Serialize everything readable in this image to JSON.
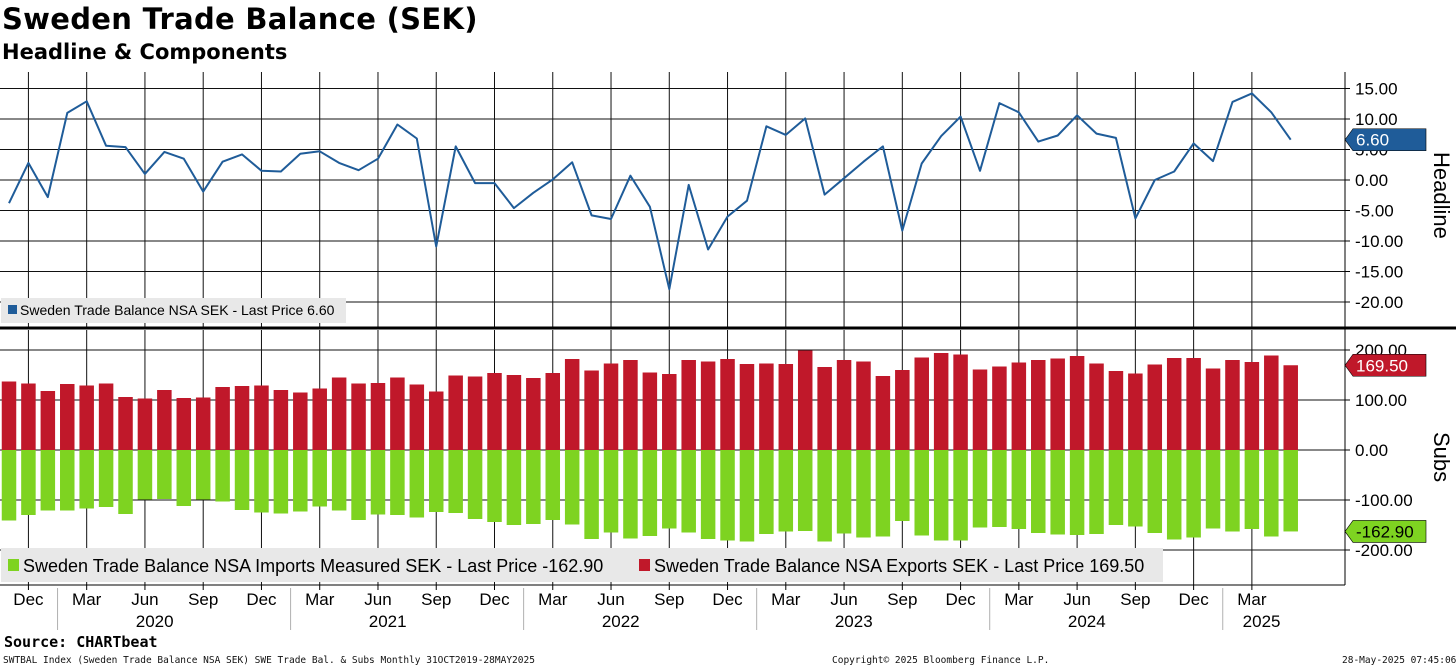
{
  "header": {
    "title": "Sweden Trade Balance (SEK)",
    "subtitle": "Headline & Components"
  },
  "footer": {
    "source": "Source: CHARTbeat",
    "index_desc": "SWTBAL Index (Sweden Trade Balance NSA SEK) SWE Trade Bal. & Subs  Monthly 31OCT2019-28MAY2025",
    "copyright": "Copyright© 2025 Bloomberg Finance L.P.",
    "timestamp": "28-May-2025 07:45:06"
  },
  "colors": {
    "headline": "#1f5c99",
    "exports": "#c0182a",
    "imports": "#7ed321",
    "grid": "#111111"
  },
  "chart_data": [
    {
      "type": "line",
      "axis_title": "Headline",
      "series": [
        {
          "name": "Sweden Trade Balance NSA SEK",
          "values": [
            -3.8,
            2.8,
            -2.8,
            11.0,
            12.9,
            5.6,
            5.4,
            1.0,
            4.6,
            3.5,
            -1.9,
            3.0,
            4.2,
            1.5,
            1.4,
            4.3,
            4.7,
            2.8,
            1.6,
            3.5,
            9.1,
            6.8,
            -10.9,
            5.5,
            -0.5,
            -0.5,
            -4.6,
            -2.1,
            0.1,
            2.9,
            -5.8,
            -6.4,
            0.7,
            -4.4,
            -17.9,
            -0.8,
            -11.4,
            -6.0,
            -3.4,
            8.8,
            7.4,
            10.1,
            -2.4,
            0.3,
            3.0,
            5.5,
            -8.3,
            2.7,
            7.2,
            10.4,
            1.5,
            12.6,
            11.1,
            6.3,
            7.3,
            10.6,
            7.6,
            6.9,
            -6.3,
            0.0,
            1.4,
            6.0,
            3.1,
            12.8,
            14.2,
            11.1,
            6.6
          ],
          "last_price_label": "Sweden Trade Balance NSA SEK - Last Price 6.60",
          "last_value_tag": "6.60"
        }
      ],
      "y_ticks": [
        "15.00",
        "10.00",
        "5.00",
        "0.00",
        "-5.00",
        "-10.00",
        "-15.00",
        "-20.00"
      ],
      "y_tick_values": [
        15,
        10,
        5,
        0,
        -5,
        -10,
        -15,
        -20
      ],
      "ylim": [
        -24,
        18
      ]
    },
    {
      "type": "bar",
      "axis_title": "Subs",
      "series": [
        {
          "name": "Sweden Trade Balance NSA Exports SEK",
          "values": [
            137,
            133,
            118,
            132,
            129,
            133,
            106,
            103,
            120,
            104,
            105,
            126,
            128,
            129,
            120,
            115,
            123,
            145,
            133,
            134,
            145,
            131,
            117,
            149,
            147,
            154,
            150,
            144,
            154,
            182,
            159,
            173,
            180,
            155,
            152,
            180,
            177,
            182,
            172,
            173,
            172,
            199,
            166,
            180,
            177,
            148,
            160,
            185,
            194,
            191,
            161,
            167,
            175,
            180,
            183,
            188,
            173,
            158,
            153,
            171,
            184,
            184,
            163,
            180,
            176,
            189,
            169.5
          ],
          "last_price_label": "Sweden Trade Balance NSA Exports SEK - Last Price 169.50",
          "last_value_tag": "169.50"
        },
        {
          "name": "Sweden Trade Balance NSA Imports Measured SEK",
          "values": [
            -141,
            -130,
            -121,
            -121,
            -117,
            -114,
            -128,
            -99,
            -98,
            -112,
            -99,
            -103,
            -120,
            -125,
            -127,
            -123,
            -113,
            -121,
            -140,
            -129,
            -130,
            -135,
            -124,
            -126,
            -138,
            -144,
            -150,
            -148,
            -140,
            -149,
            -178,
            -165,
            -177,
            -172,
            -157,
            -165,
            -178,
            -181,
            -183,
            -168,
            -163,
            -162,
            -183,
            -167,
            -175,
            -173,
            -142,
            -171,
            -181,
            -181,
            -155,
            -154,
            -158,
            -166,
            -169,
            -170,
            -168,
            -150,
            -153,
            -166,
            -179,
            -175,
            -157,
            -163,
            -158,
            -173,
            -162.9
          ],
          "last_price_label": "Sweden Trade Balance NSA Imports Measured SEK - Last Price -162.90",
          "last_value_tag": "-162.90"
        }
      ],
      "y_ticks": [
        "200.00",
        "100.00",
        "0.00",
        "-100.00",
        "-200.00"
      ],
      "y_tick_values": [
        200,
        100,
        0,
        -100,
        -200
      ],
      "ylim": [
        -272,
        208
      ]
    }
  ],
  "x_axis": {
    "month_ticks": [
      {
        "label": "Dec",
        "index": 1
      },
      {
        "label": "Mar",
        "index": 4
      },
      {
        "label": "Jun",
        "index": 7
      },
      {
        "label": "Sep",
        "index": 10
      },
      {
        "label": "Dec",
        "index": 13
      },
      {
        "label": "Mar",
        "index": 16
      },
      {
        "label": "Jun",
        "index": 19
      },
      {
        "label": "Sep",
        "index": 22
      },
      {
        "label": "Dec",
        "index": 25
      },
      {
        "label": "Mar",
        "index": 28
      },
      {
        "label": "Jun",
        "index": 31
      },
      {
        "label": "Sep",
        "index": 34
      },
      {
        "label": "Dec",
        "index": 37
      },
      {
        "label": "Mar",
        "index": 40
      },
      {
        "label": "Jun",
        "index": 43
      },
      {
        "label": "Sep",
        "index": 46
      },
      {
        "label": "Dec",
        "index": 49
      },
      {
        "label": "Mar",
        "index": 52
      },
      {
        "label": "Jun",
        "index": 55
      },
      {
        "label": "Sep",
        "index": 58
      },
      {
        "label": "Dec",
        "index": 61
      },
      {
        "label": "Mar",
        "index": 64
      }
    ],
    "year_labels": [
      {
        "label": "2020",
        "index": 7.5
      },
      {
        "label": "2021",
        "index": 19.5
      },
      {
        "label": "2022",
        "index": 31.5
      },
      {
        "label": "2023",
        "index": 43.5
      },
      {
        "label": "2024",
        "index": 55.5
      },
      {
        "label": "2025",
        "index": 64.5
      }
    ],
    "year_dividers": [
      2.5,
      14.5,
      26.5,
      38.5,
      50.5,
      62.5
    ]
  }
}
